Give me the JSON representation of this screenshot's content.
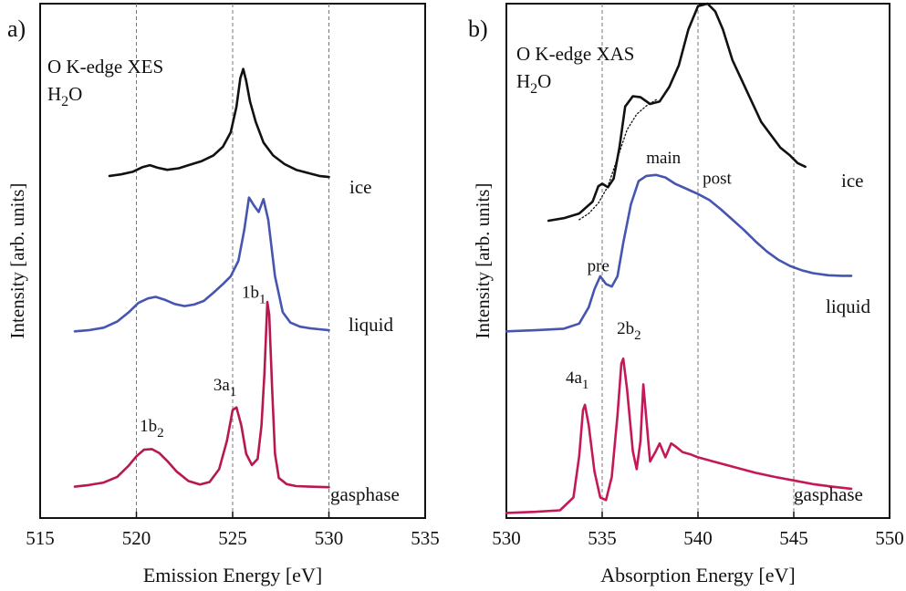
{
  "chart_data": [
    {
      "panel_label": "a)",
      "type": "line",
      "title_lines": [
        "O K-edge XES",
        "H",
        "2",
        "O"
      ],
      "xlabel": "Emission Energy [eV]",
      "ylabel": "Intensity [arb. units]",
      "xlim": [
        515,
        535
      ],
      "ylim": [
        0,
        1
      ],
      "xticks": [
        "515",
        "520",
        "525",
        "530",
        "535"
      ],
      "vlines": [
        520,
        525,
        530
      ],
      "series": [
        {
          "name": "ice",
          "color": "#111111",
          "x": [
            518.6,
            519.2,
            519.8,
            520.3,
            520.7,
            521.1,
            521.6,
            522.2,
            522.8,
            523.4,
            524.0,
            524.5,
            524.9,
            525.2,
            525.4,
            525.55,
            525.7,
            525.9,
            526.2,
            526.6,
            527.1,
            527.7,
            528.3,
            529.0,
            529.5,
            530.0
          ],
          "y": [
            0.665,
            0.668,
            0.673,
            0.682,
            0.686,
            0.681,
            0.677,
            0.68,
            0.687,
            0.694,
            0.705,
            0.722,
            0.75,
            0.8,
            0.855,
            0.873,
            0.85,
            0.81,
            0.77,
            0.73,
            0.705,
            0.688,
            0.677,
            0.67,
            0.665,
            0.663
          ]
        },
        {
          "name": "liquid",
          "color": "#4555b0",
          "x": [
            516.8,
            517.5,
            518.3,
            519.0,
            519.6,
            520.1,
            520.6,
            521.0,
            521.5,
            522.0,
            522.5,
            523.0,
            523.5,
            524.0,
            524.5,
            524.9,
            525.3,
            525.6,
            525.85,
            526.1,
            526.35,
            526.6,
            526.85,
            527.2,
            527.6,
            528.0,
            528.5,
            529.0,
            529.5,
            530.0
          ],
          "y": [
            0.363,
            0.365,
            0.37,
            0.382,
            0.4,
            0.418,
            0.427,
            0.43,
            0.424,
            0.416,
            0.412,
            0.415,
            0.422,
            0.438,
            0.455,
            0.47,
            0.5,
            0.56,
            0.623,
            0.608,
            0.595,
            0.62,
            0.58,
            0.47,
            0.4,
            0.38,
            0.372,
            0.369,
            0.367,
            0.365
          ]
        },
        {
          "name": "gasphase",
          "color": "#b81850",
          "x": [
            516.8,
            517.5,
            518.3,
            519.0,
            519.6,
            520.0,
            520.4,
            520.8,
            521.2,
            521.6,
            522.1,
            522.7,
            523.3,
            523.8,
            524.3,
            524.7,
            525.0,
            525.2,
            525.45,
            525.7,
            526.0,
            526.3,
            526.5,
            526.65,
            526.8,
            526.9,
            527.05,
            527.2,
            527.4,
            527.8,
            528.3,
            529.0,
            530.0
          ],
          "y": [
            0.061,
            0.064,
            0.069,
            0.08,
            0.102,
            0.12,
            0.133,
            0.134,
            0.126,
            0.111,
            0.09,
            0.072,
            0.065,
            0.07,
            0.095,
            0.15,
            0.21,
            0.215,
            0.18,
            0.125,
            0.103,
            0.115,
            0.18,
            0.28,
            0.42,
            0.395,
            0.25,
            0.125,
            0.078,
            0.066,
            0.062,
            0.061,
            0.06
          ]
        }
      ],
      "curve_labels": [
        "ice",
        "liquid",
        "gasphase"
      ],
      "annotations": [
        {
          "base": "1b",
          "sub": "1",
          "x": 526.1,
          "y": 0.428
        },
        {
          "base": "3a",
          "sub": "1",
          "x": 524.6,
          "y": 0.248
        },
        {
          "base": "1b",
          "sub": "2",
          "x": 520.8,
          "y": 0.168
        }
      ]
    },
    {
      "panel_label": "b)",
      "type": "line",
      "title_lines": [
        "O K-edge XAS",
        "H",
        "2",
        "O"
      ],
      "xlabel": "Absorption Energy [eV]",
      "ylabel": "Intensity [arb. units]",
      "xlim": [
        530,
        550
      ],
      "ylim": [
        0,
        1
      ],
      "xticks": [
        "530",
        "535",
        "540",
        "545",
        "550"
      ],
      "vlines": [
        535,
        540,
        545
      ],
      "series": [
        {
          "name": "ice",
          "color": "#111111",
          "x": [
            532.2,
            533.0,
            533.8,
            534.5,
            534.8,
            535.0,
            535.3,
            535.6,
            535.9,
            536.2,
            536.6,
            537.0,
            537.5,
            538.0,
            538.5,
            539.0,
            539.5,
            540.0,
            540.5,
            540.9,
            541.3,
            541.8,
            542.3,
            542.8,
            543.3,
            543.8,
            544.3,
            544.8,
            545.2,
            545.6
          ],
          "y": [
            0.578,
            0.583,
            0.592,
            0.615,
            0.645,
            0.65,
            0.643,
            0.66,
            0.72,
            0.8,
            0.82,
            0.818,
            0.805,
            0.81,
            0.838,
            0.88,
            0.95,
            0.995,
            1.0,
            0.985,
            0.95,
            0.89,
            0.85,
            0.81,
            0.77,
            0.745,
            0.72,
            0.705,
            0.69,
            0.683
          ]
        },
        {
          "name": "ice-fit",
          "color": "#111111",
          "dotted": true,
          "x": [
            533.8,
            534.3,
            534.8,
            535.3,
            535.8,
            536.3,
            536.8,
            537.3,
            537.9
          ],
          "y": [
            0.58,
            0.592,
            0.612,
            0.645,
            0.7,
            0.755,
            0.785,
            0.801,
            0.815
          ]
        },
        {
          "name": "liquid",
          "color": "#4555b0",
          "x": [
            530.0,
            531.5,
            533.0,
            533.8,
            534.3,
            534.6,
            534.9,
            535.2,
            535.5,
            535.8,
            536.1,
            536.5,
            536.9,
            537.3,
            537.8,
            538.3,
            538.8,
            539.4,
            540.0,
            540.6,
            541.2,
            541.8,
            542.4,
            543.0,
            543.6,
            544.2,
            544.8,
            545.4,
            546.0,
            546.8,
            547.5,
            548.0
          ],
          "y": [
            0.363,
            0.365,
            0.368,
            0.378,
            0.41,
            0.445,
            0.47,
            0.455,
            0.45,
            0.47,
            0.535,
            0.61,
            0.655,
            0.665,
            0.667,
            0.662,
            0.65,
            0.64,
            0.63,
            0.618,
            0.6,
            0.58,
            0.56,
            0.538,
            0.518,
            0.502,
            0.49,
            0.482,
            0.476,
            0.472,
            0.471,
            0.471
          ]
        },
        {
          "name": "gasphase",
          "color": "#c41858",
          "x": [
            530.0,
            531.5,
            532.8,
            533.5,
            533.8,
            534.0,
            534.1,
            534.3,
            534.6,
            534.9,
            535.2,
            535.5,
            535.8,
            536.0,
            536.1,
            536.3,
            536.6,
            536.8,
            537.0,
            537.15,
            537.3,
            537.5,
            537.8,
            538.0,
            538.3,
            538.6,
            538.8,
            539.2,
            539.6,
            540.0,
            541.0,
            542.0,
            543.0,
            544.0,
            545.0,
            546.0,
            547.0,
            548.0
          ],
          "y": [
            0.01,
            0.012,
            0.015,
            0.04,
            0.12,
            0.21,
            0.22,
            0.18,
            0.09,
            0.04,
            0.035,
            0.08,
            0.2,
            0.3,
            0.31,
            0.25,
            0.13,
            0.095,
            0.15,
            0.26,
            0.195,
            0.11,
            0.13,
            0.145,
            0.118,
            0.145,
            0.14,
            0.128,
            0.124,
            0.118,
            0.108,
            0.098,
            0.088,
            0.08,
            0.073,
            0.066,
            0.061,
            0.057
          ]
        }
      ],
      "curve_labels": [
        "ice",
        "liquid",
        "gasphase"
      ],
      "annotations": [
        {
          "base": "main",
          "sub": "",
          "x": 538.2,
          "y": 0.69
        },
        {
          "base": "post",
          "sub": "",
          "x": 541.0,
          "y": 0.65
        },
        {
          "base": "pre",
          "sub": "",
          "x": 534.8,
          "y": 0.48
        },
        {
          "base": "2b",
          "sub": "2",
          "x": 536.4,
          "y": 0.358
        },
        {
          "base": "4a",
          "sub": "1",
          "x": 533.7,
          "y": 0.262
        }
      ]
    }
  ]
}
